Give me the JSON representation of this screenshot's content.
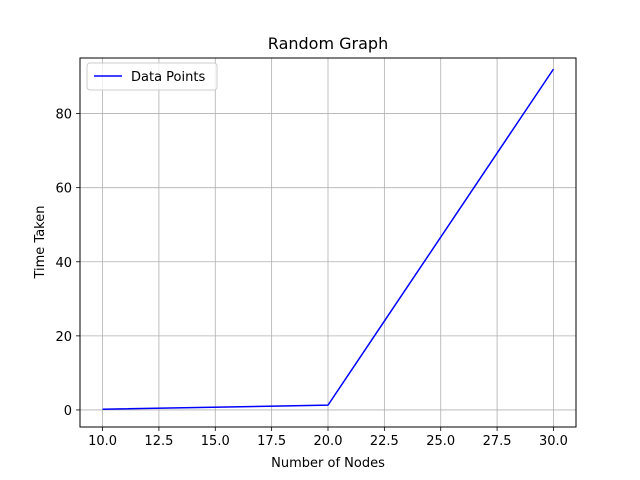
{
  "chart_data": {
    "type": "line",
    "title": "Random Graph",
    "xlabel": "Number of Nodes",
    "ylabel": "Time Taken",
    "xlim": [
      9.0,
      31.0
    ],
    "ylim": [
      -4.6,
      95.0
    ],
    "xticks": [
      10.0,
      12.5,
      15.0,
      17.5,
      20.0,
      22.5,
      25.0,
      27.5,
      30.0
    ],
    "xtick_labels": [
      "10.0",
      "12.5",
      "15.0",
      "17.5",
      "20.0",
      "22.5",
      "25.0",
      "27.5",
      "30.0"
    ],
    "yticks": [
      0,
      20,
      40,
      60,
      80
    ],
    "ytick_labels": [
      "0",
      "20",
      "40",
      "60",
      "80"
    ],
    "grid": true,
    "legend_position": "top-left",
    "series": [
      {
        "name": "Data Points",
        "color": "#0000ff",
        "x": [
          10,
          20,
          30
        ],
        "y": [
          0.2,
          1.3,
          92.0
        ]
      }
    ]
  }
}
